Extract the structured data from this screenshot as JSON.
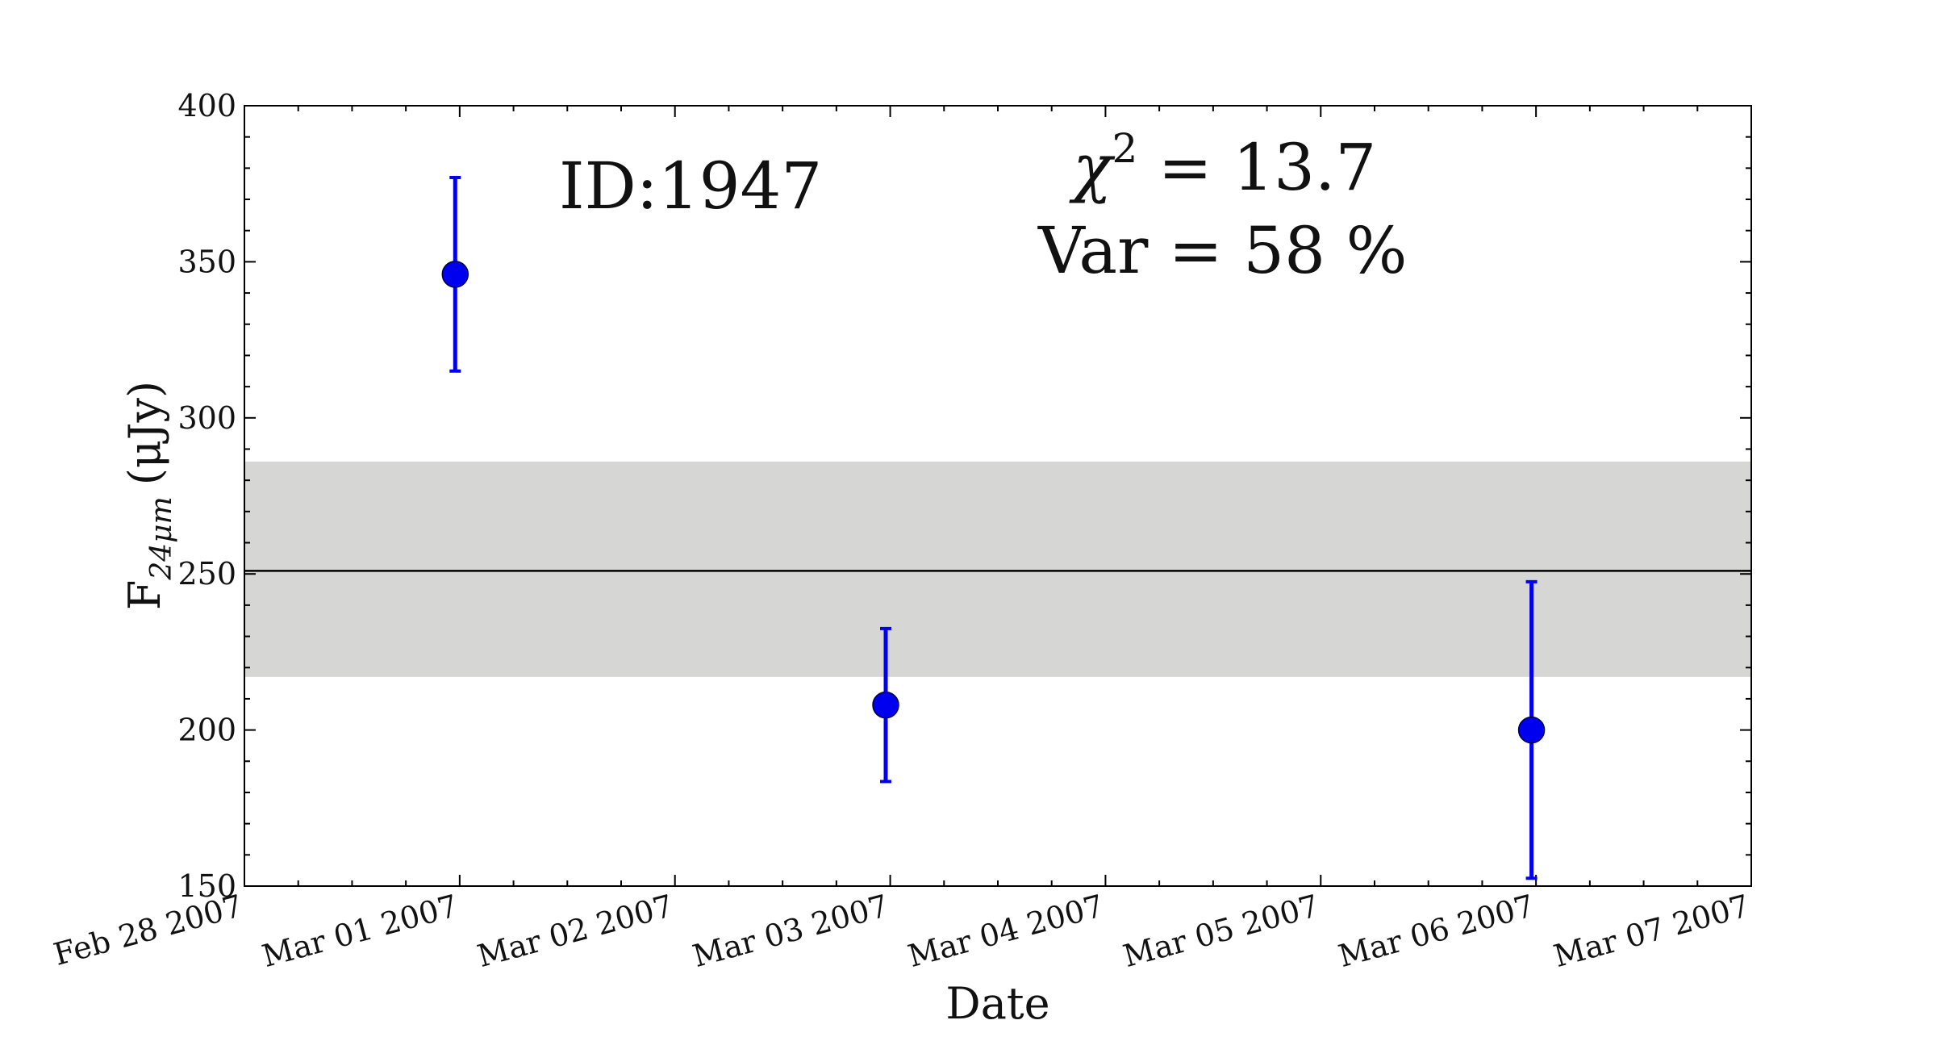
{
  "chart_data": {
    "type": "scatter",
    "xlabel": "Date",
    "ylabel": {
      "main": "F",
      "subscript": "24μm",
      "unit": "(μJy)"
    },
    "x_ticks": [
      "Feb 28 2007",
      "Mar 01 2007",
      "Mar 02 2007",
      "Mar 03 2007",
      "Mar 04 2007",
      "Mar 05 2007",
      "Mar 06 2007",
      "Mar 07 2007"
    ],
    "xlim": [
      "2007-02-28",
      "2007-03-07"
    ],
    "ylim": [
      150,
      400
    ],
    "y_ticks": [
      150,
      200,
      250,
      300,
      350,
      400
    ],
    "series": [
      {
        "color": "#0000ee",
        "points": [
          {
            "x": "2007-02-28T23:30",
            "y": 346,
            "err_low": 31,
            "err_high": 31
          },
          {
            "x": "2007-03-02T23:30",
            "y": 208,
            "err_low": 24.5,
            "err_high": 24.5
          },
          {
            "x": "2007-03-05T23:30",
            "y": 200,
            "err_low": 47.5,
            "err_high": 47.5
          }
        ]
      }
    ],
    "mean_line": {
      "y": 251,
      "color": "#000000"
    },
    "band": {
      "y_low": 217,
      "y_high": 286,
      "color": "#d6d6d5"
    },
    "annotations": {
      "id": "ID:1947",
      "chi_prefix": "χ",
      "chi_exp": "2",
      "chi_value": " = 13.7",
      "var": "Var = 58 %"
    },
    "grid": false
  }
}
